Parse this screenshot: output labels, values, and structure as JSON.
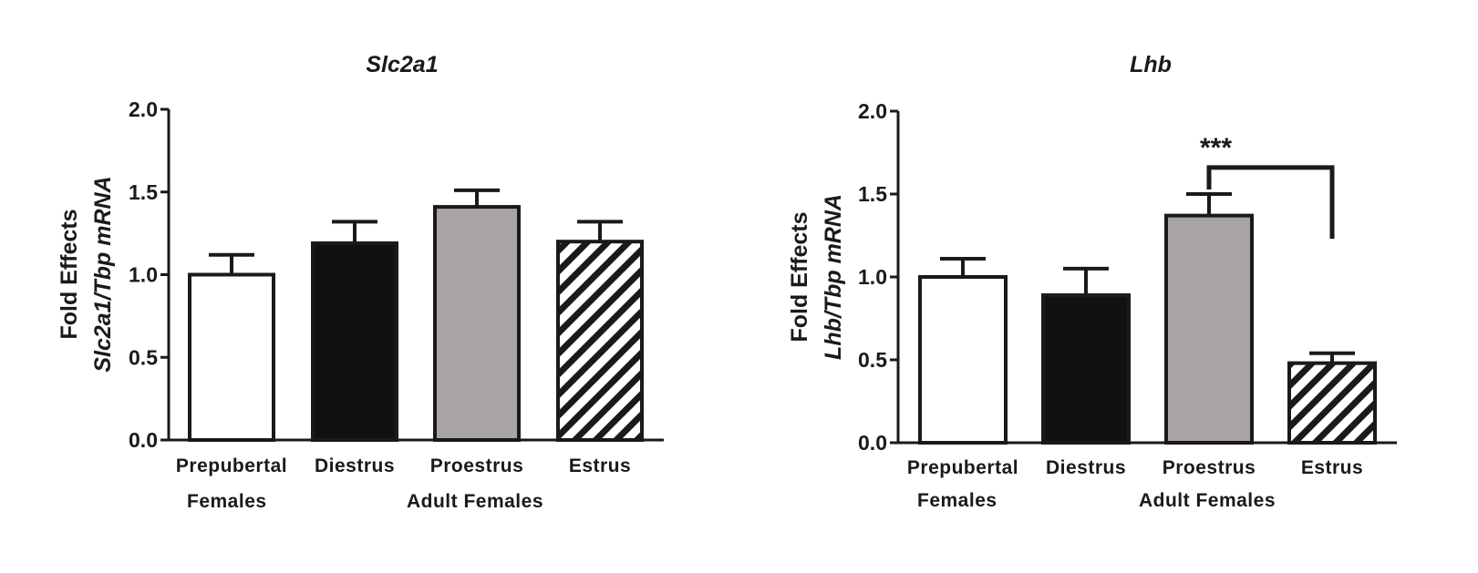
{
  "chart_data": [
    {
      "type": "bar",
      "title": "Slc2a1",
      "ylabel_line1": "Fold  Effects",
      "ylabel_line2": "Slc2a1/Tbp mRNA",
      "ylim": [
        0,
        2.0
      ],
      "yticks": [
        "0.0",
        "0.5",
        "1.0",
        "1.5",
        "2.0"
      ],
      "categories": [
        "Prepubertal",
        "Diestrus",
        "Proestrus",
        "Estrus"
      ],
      "group_labels": [
        "Females",
        "Adult Females"
      ],
      "values": [
        1.0,
        1.19,
        1.41,
        1.2
      ],
      "errors": [
        0.12,
        0.13,
        0.1,
        0.12
      ],
      "fills": [
        "white",
        "black",
        "gray",
        "hatched"
      ],
      "colors": {
        "white": "#ffffff",
        "black": "#111111",
        "gray": "#a9a3a3",
        "edge": "#1a1a1a"
      }
    },
    {
      "type": "bar",
      "title": "Lhb",
      "ylabel_line1": "Fold  Effects",
      "ylabel_line2": "Lhb/Tbp mRNA",
      "ylim": [
        0,
        2.0
      ],
      "yticks": [
        "0.0",
        "0.5",
        "1.0",
        "1.5",
        "2.0"
      ],
      "categories": [
        "Prepubertal",
        "Diestrus",
        "Proestrus",
        "Estrus"
      ],
      "group_labels": [
        "Females",
        "Adult Females"
      ],
      "values": [
        1.0,
        0.89,
        1.37,
        0.48
      ],
      "errors": [
        0.11,
        0.16,
        0.13,
        0.06
      ],
      "fills": [
        "white",
        "black",
        "gray",
        "hatched"
      ],
      "colors": {
        "white": "#ffffff",
        "black": "#111111",
        "gray": "#a9a3a3",
        "edge": "#1a1a1a"
      },
      "significance": {
        "from": "Proestrus",
        "to": "Estrus",
        "label": "***",
        "bracket_y": 1.66
      }
    }
  ]
}
